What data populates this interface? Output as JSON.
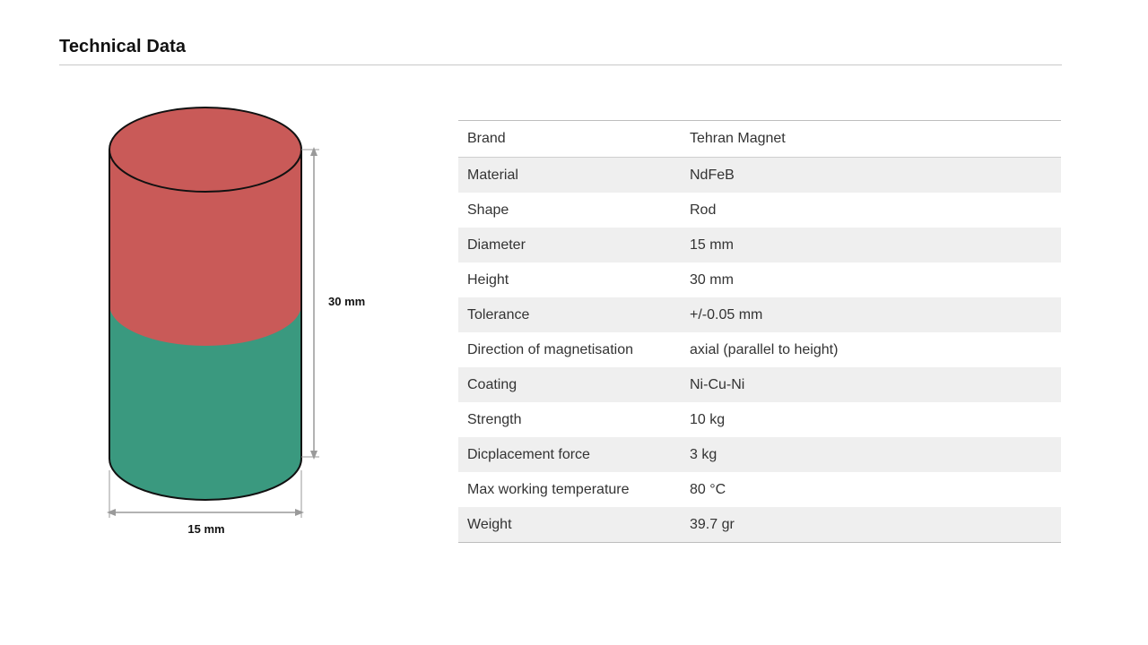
{
  "header": {
    "title": "Technical Data"
  },
  "figure": {
    "height_label": "30 mm",
    "diameter_label": "15 mm",
    "colors": {
      "north": "#c95a58",
      "south": "#3a997f",
      "outline": "#111111",
      "dimension": "#9a9a9a"
    }
  },
  "specs": [
    {
      "label": "Brand",
      "value": "Tehran Magnet"
    },
    {
      "label": "Material",
      "value": "NdFeB"
    },
    {
      "label": "Shape",
      "value": "Rod"
    },
    {
      "label": "Diameter",
      "value": "15 mm"
    },
    {
      "label": "Height",
      "value": "30 mm"
    },
    {
      "label": "Tolerance",
      "value": "+/-0.05 mm"
    },
    {
      "label": "Direction of magnetisation",
      "value": "axial (parallel to height)"
    },
    {
      "label": "Coating",
      "value": "Ni-Cu-Ni"
    },
    {
      "label": "Strength",
      "value": "10 kg"
    },
    {
      "label": "Dicplacement force",
      "value": "3 kg"
    },
    {
      "label": "Max working temperature",
      "value": "80 °C"
    },
    {
      "label": "Weight",
      "value": "39.7 gr"
    }
  ]
}
